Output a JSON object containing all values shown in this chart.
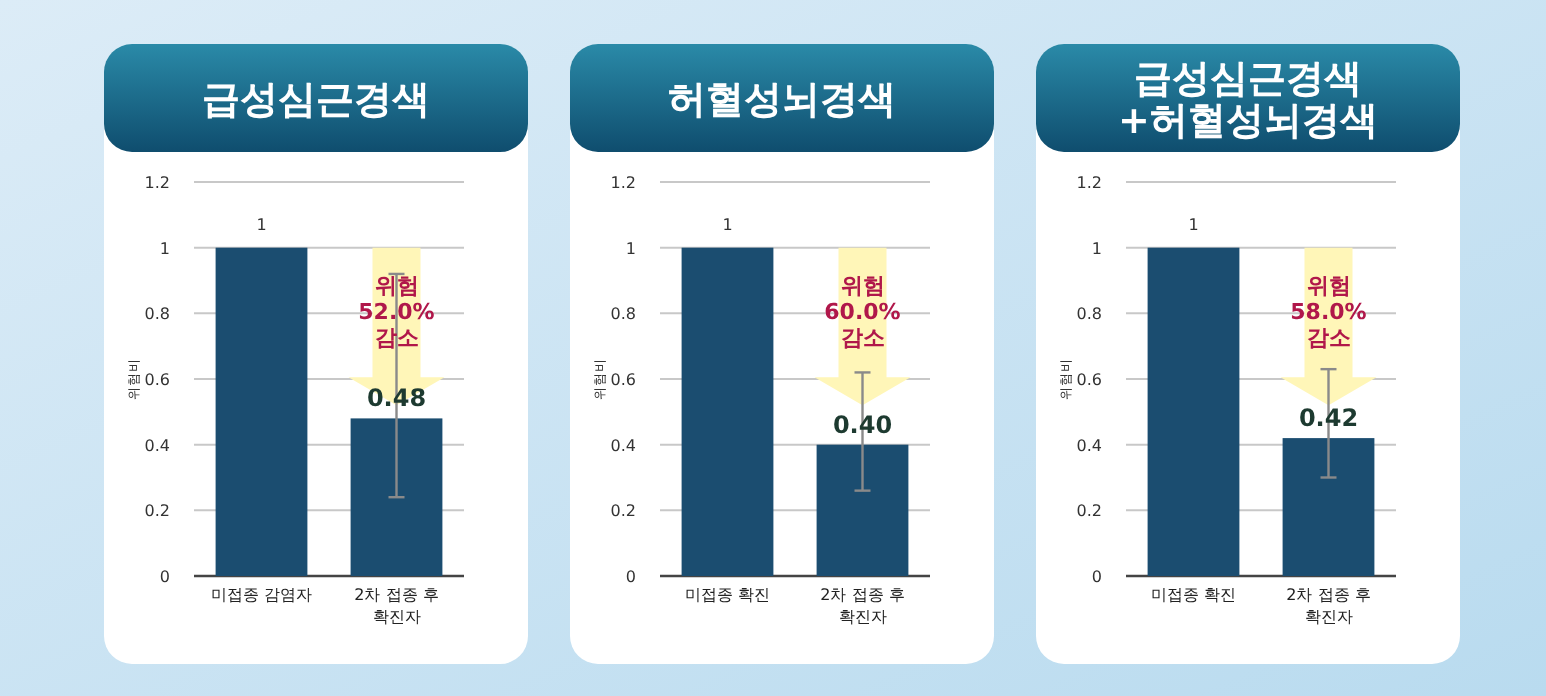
{
  "chart_data": [
    {
      "type": "bar",
      "title": "급성심근경색",
      "ylabel": "위험비",
      "categories": [
        "미접종 감염자",
        "2차 접종 후 확진자"
      ],
      "values": [
        1,
        0.48
      ],
      "color": "#1b4d70",
      "errors": [
        null,
        [
          0.24,
          0.92
        ]
      ],
      "value_labels": [
        "1",
        "0.48"
      ],
      "ylim": [
        0,
        1.2
      ],
      "yticks": [
        0,
        0.2,
        0.4,
        0.6,
        0.8,
        1,
        1.2
      ],
      "grid": "y",
      "annotations": [
        "위험 52.0% 감소"
      ]
    },
    {
      "type": "bar",
      "title": "허혈성뇌경색",
      "ylabel": "위험비",
      "categories": [
        "미접종 확진",
        "2차 접종 후 확진자"
      ],
      "values": [
        1,
        0.4
      ],
      "color": "#1b4d70",
      "errors": [
        null,
        [
          0.26,
          0.62
        ]
      ],
      "value_labels": [
        "1",
        "0.40"
      ],
      "ylim": [
        0,
        1.2
      ],
      "yticks": [
        0,
        0.2,
        0.4,
        0.6,
        0.8,
        1,
        1.2
      ],
      "grid": "y",
      "annotations": [
        "위험 60.0% 감소"
      ]
    },
    {
      "type": "bar",
      "title": "급성심근경색 +허혈성뇌경색",
      "ylabel": "위험비",
      "categories": [
        "미접종 확진",
        "2차 접종 후 확진자"
      ],
      "values": [
        1,
        0.42
      ],
      "color": "#1b4d70",
      "errors": [
        null,
        [
          0.3,
          0.63
        ]
      ],
      "value_labels": [
        "1",
        "0.42"
      ],
      "ylim": [
        0,
        1.2
      ],
      "yticks": [
        0,
        0.2,
        0.4,
        0.6,
        0.8,
        1,
        1.2
      ],
      "grid": "y",
      "annotations": [
        "위험 58.0% 감소"
      ]
    }
  ]
}
